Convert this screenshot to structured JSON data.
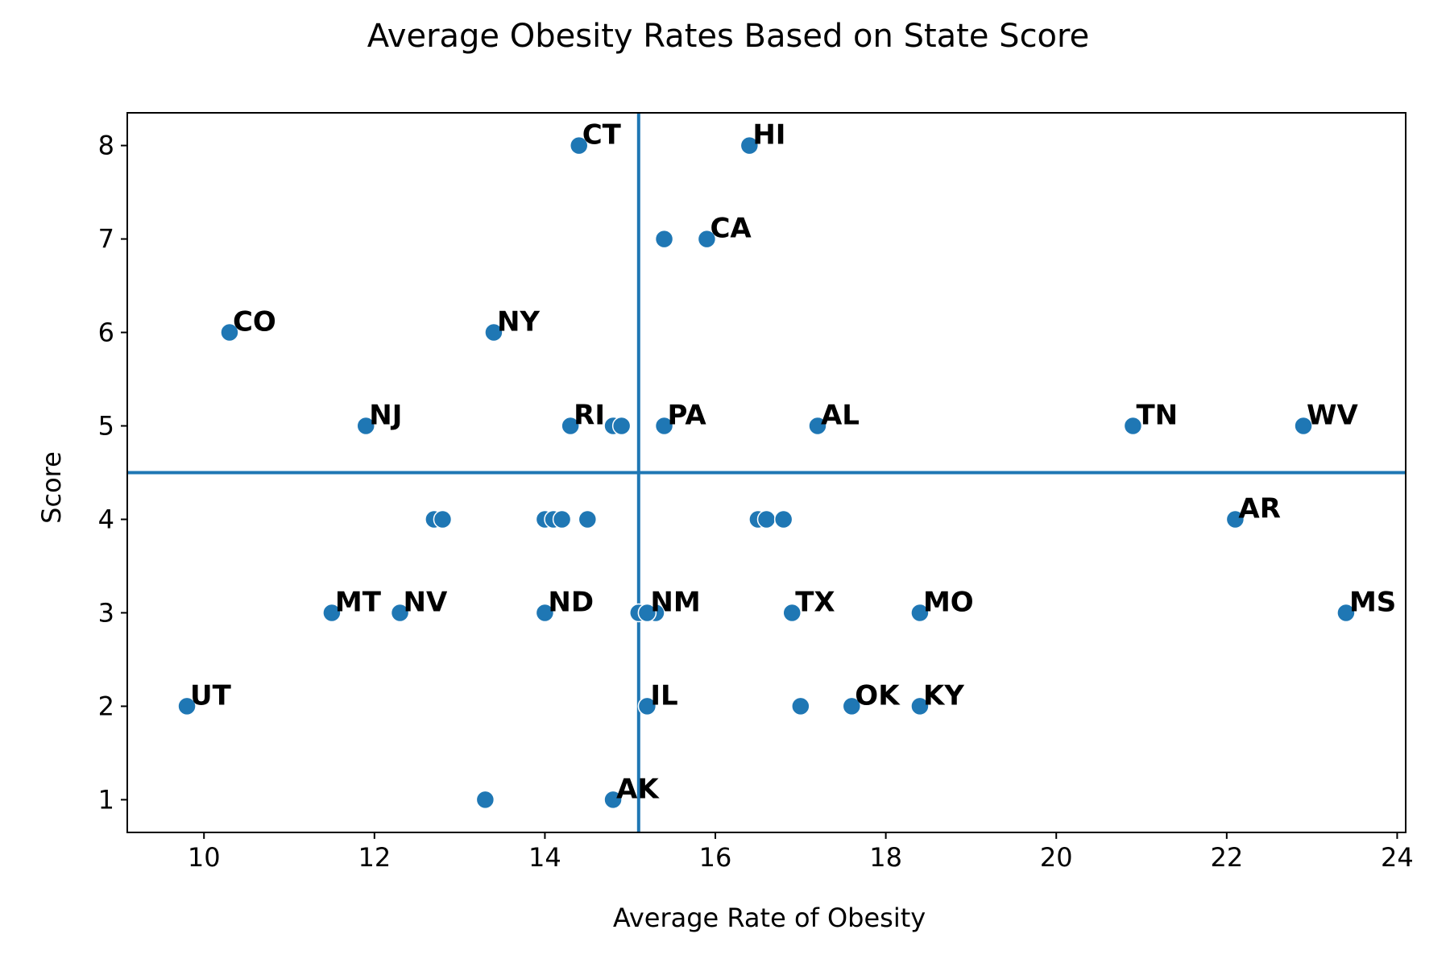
{
  "chart_data": {
    "type": "scatter",
    "title": "Average Obesity Rates Based on State Score",
    "xlabel": "Average Rate of Obesity",
    "ylabel": "Score",
    "xlim": [
      9.1,
      24.1
    ],
    "ylim": [
      0.65,
      8.35
    ],
    "xticks": [
      10,
      12,
      14,
      16,
      18,
      20,
      22,
      24
    ],
    "yticks": [
      1,
      2,
      3,
      4,
      5,
      6,
      7,
      8
    ],
    "grid": false,
    "marker_color": "#1f77b4",
    "reference_lines": {
      "vertical_x": 15.1,
      "horizontal_y": 4.5,
      "color": "#1f77b4"
    },
    "points": [
      {
        "x": 14.4,
        "y": 8,
        "label": "CT"
      },
      {
        "x": 16.4,
        "y": 8,
        "label": "HI"
      },
      {
        "x": 15.4,
        "y": 7,
        "label": ""
      },
      {
        "x": 15.9,
        "y": 7,
        "label": "CA"
      },
      {
        "x": 10.3,
        "y": 6,
        "label": "CO"
      },
      {
        "x": 13.4,
        "y": 6,
        "label": "NY"
      },
      {
        "x": 11.9,
        "y": 5,
        "label": "NJ"
      },
      {
        "x": 14.3,
        "y": 5,
        "label": "RI"
      },
      {
        "x": 14.8,
        "y": 5,
        "label": ""
      },
      {
        "x": 14.9,
        "y": 5,
        "label": ""
      },
      {
        "x": 15.4,
        "y": 5,
        "label": "PA"
      },
      {
        "x": 17.2,
        "y": 5,
        "label": "AL"
      },
      {
        "x": 20.9,
        "y": 5,
        "label": "TN"
      },
      {
        "x": 22.9,
        "y": 5,
        "label": "WV"
      },
      {
        "x": 12.7,
        "y": 4,
        "label": ""
      },
      {
        "x": 12.8,
        "y": 4,
        "label": ""
      },
      {
        "x": 14.0,
        "y": 4,
        "label": ""
      },
      {
        "x": 14.1,
        "y": 4,
        "label": ""
      },
      {
        "x": 14.2,
        "y": 4,
        "label": ""
      },
      {
        "x": 14.5,
        "y": 4,
        "label": ""
      },
      {
        "x": 16.5,
        "y": 4,
        "label": ""
      },
      {
        "x": 16.6,
        "y": 4,
        "label": ""
      },
      {
        "x": 16.8,
        "y": 4,
        "label": ""
      },
      {
        "x": 22.1,
        "y": 4,
        "label": "AR"
      },
      {
        "x": 11.5,
        "y": 3,
        "label": "MT"
      },
      {
        "x": 12.3,
        "y": 3,
        "label": "NV"
      },
      {
        "x": 14.0,
        "y": 3,
        "label": "ND"
      },
      {
        "x": 15.1,
        "y": 3,
        "label": ""
      },
      {
        "x": 15.3,
        "y": 3,
        "label": ""
      },
      {
        "x": 15.2,
        "y": 3,
        "label": "NM"
      },
      {
        "x": 16.9,
        "y": 3,
        "label": "TX"
      },
      {
        "x": 18.4,
        "y": 3,
        "label": "MO"
      },
      {
        "x": 23.4,
        "y": 3,
        "label": "MS"
      },
      {
        "x": 9.8,
        "y": 2,
        "label": "UT"
      },
      {
        "x": 15.2,
        "y": 2,
        "label": "IL"
      },
      {
        "x": 17.0,
        "y": 2,
        "label": ""
      },
      {
        "x": 17.6,
        "y": 2,
        "label": "OK"
      },
      {
        "x": 18.4,
        "y": 2,
        "label": "KY"
      },
      {
        "x": 13.3,
        "y": 1,
        "label": ""
      },
      {
        "x": 14.8,
        "y": 1,
        "label": "AK"
      }
    ]
  }
}
